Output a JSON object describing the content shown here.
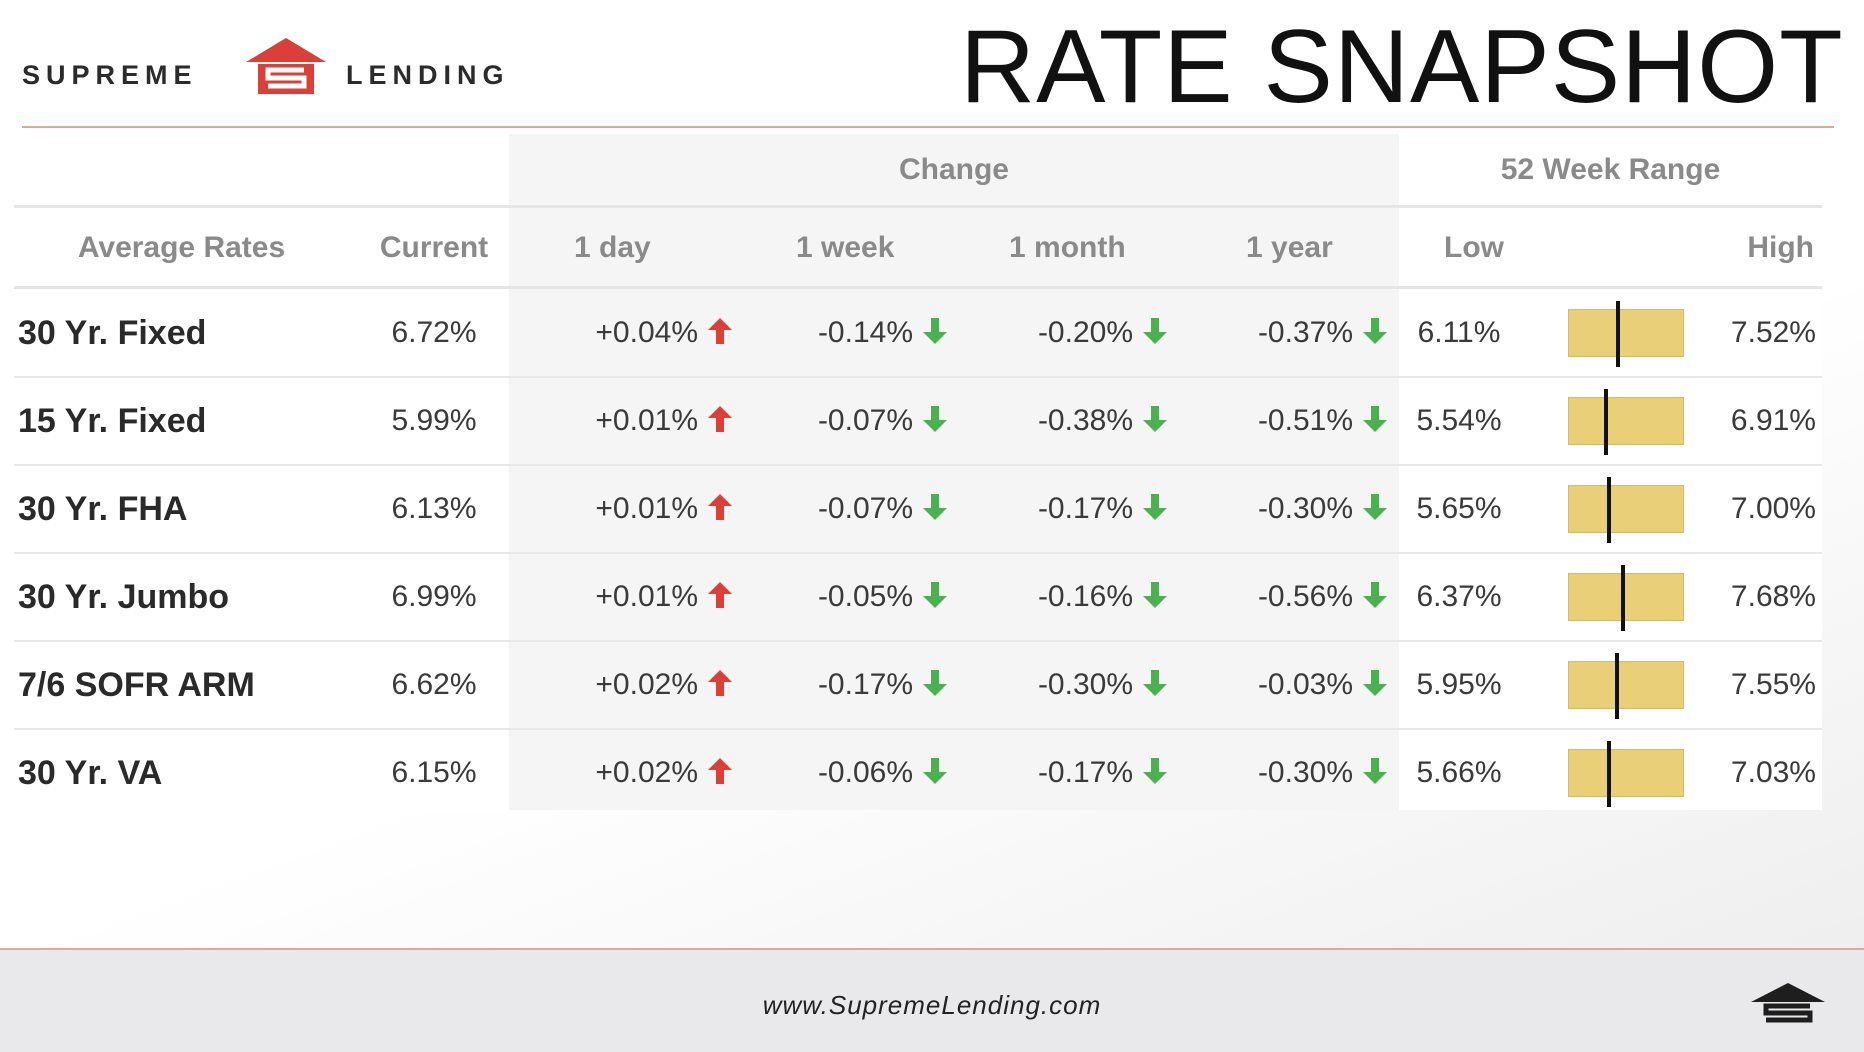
{
  "brand": {
    "name_left": "SUPREME",
    "name_right": "LENDING",
    "accent_color": "#d9403a"
  },
  "title": "RATE SNAPSHOT",
  "groups": {
    "change": "Change",
    "range": "52 Week Range"
  },
  "columns": {
    "name": "Average Rates",
    "current": "Current",
    "day": "1 day",
    "week": "1 week",
    "month": "1 month",
    "year": "1 year",
    "low": "Low",
    "high": "High"
  },
  "rows": [
    {
      "name": "30 Yr. Fixed",
      "current": "6.72%",
      "day": "+0.04%",
      "week": "-0.14%",
      "month": "-0.20%",
      "year": "-0.37%",
      "low": "6.11%",
      "high": "7.52%"
    },
    {
      "name": "15 Yr. Fixed",
      "current": "5.99%",
      "day": "+0.01%",
      "week": "-0.07%",
      "month": "-0.38%",
      "year": "-0.51%",
      "low": "5.54%",
      "high": "6.91%"
    },
    {
      "name": "30 Yr. FHA",
      "current": "6.13%",
      "day": "+0.01%",
      "week": "-0.07%",
      "month": "-0.17%",
      "year": "-0.30%",
      "low": "5.65%",
      "high": "7.00%"
    },
    {
      "name": "30 Yr. Jumbo",
      "current": "6.99%",
      "day": "+0.01%",
      "week": "-0.05%",
      "month": "-0.16%",
      "year": "-0.56%",
      "low": "6.37%",
      "high": "7.68%"
    },
    {
      "name": "7/6 SOFR ARM",
      "current": "6.62%",
      "day": "+0.02%",
      "week": "-0.17%",
      "month": "-0.30%",
      "year": "-0.03%",
      "low": "5.95%",
      "high": "7.55%"
    },
    {
      "name": "30 Yr. VA",
      "current": "6.15%",
      "day": "+0.02%",
      "week": "-0.06%",
      "month": "-0.17%",
      "year": "-0.30%",
      "low": "5.66%",
      "high": "7.03%"
    }
  ],
  "colors": {
    "up": "#d9403a",
    "down": "#4caf50",
    "range_bar": "#e8cf78"
  },
  "footer": {
    "url": "www.SupremeLending.com"
  }
}
